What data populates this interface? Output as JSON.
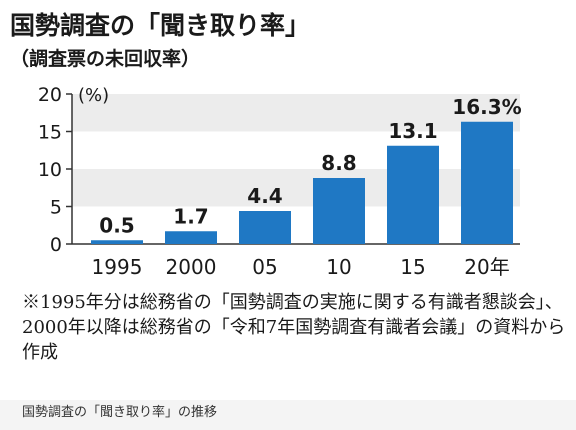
{
  "title": "国勢調査の「聞き取り率」",
  "subtitle": "（調査票の未回収率）",
  "note": "※1995年分は総務省の「国勢調査の実施に関する有識者懇談会」、2000年以降は総務省の「令和7年国勢調査有識者会議」の資料から作成",
  "caption": "国勢調査の「聞き取り率」の推移",
  "colors": {
    "bar": "#1f78c4",
    "band": "#ececec",
    "axis": "#333333"
  },
  "chart_data": {
    "type": "bar",
    "title": "国勢調査の「聞き取り率」",
    "subtitle": "（調査票の未回収率）",
    "categories": [
      "1995",
      "2000",
      "05",
      "10",
      "15",
      "20年"
    ],
    "values": [
      0.5,
      1.7,
      4.4,
      8.8,
      13.1,
      16.3
    ],
    "value_labels": [
      "0.5",
      "1.7",
      "4.4",
      "8.8",
      "13.1",
      "16.3%"
    ],
    "y_unit": "(%)",
    "yticks": [
      "0",
      "5",
      "10",
      "15",
      "20"
    ],
    "ylim": [
      0,
      20
    ],
    "grid": "alternating bands",
    "legend": "none"
  }
}
